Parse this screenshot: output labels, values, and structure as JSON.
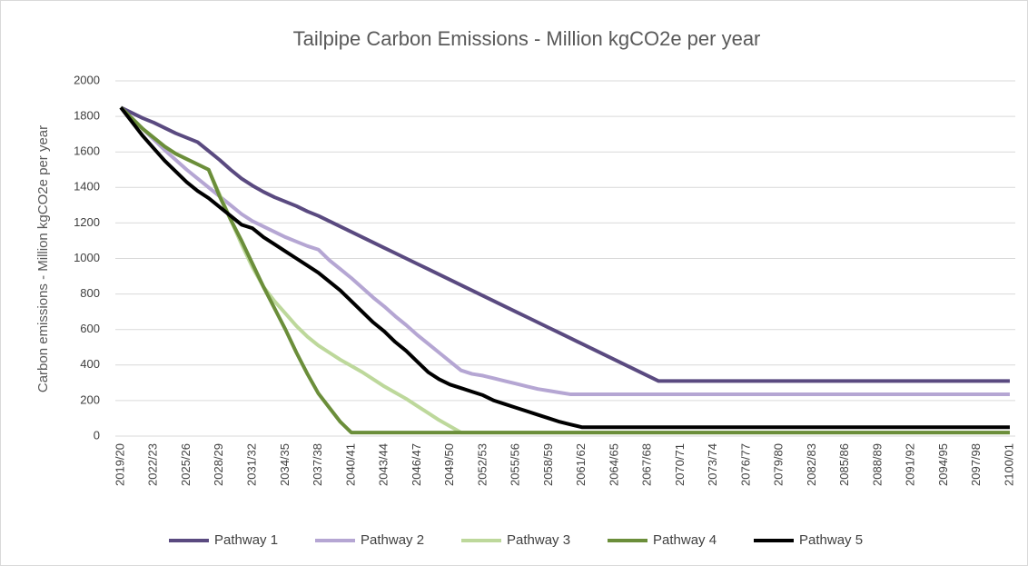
{
  "chart_data": {
    "type": "line",
    "title": "Tailpipe Carbon Emissions - Million kgCO2e per year",
    "y_label": "Carbon emissions - Million kgCO2e per year",
    "ylim": [
      0,
      2000
    ],
    "yticks": [
      0,
      200,
      400,
      600,
      800,
      1000,
      1200,
      1400,
      1600,
      1800,
      2000
    ],
    "grid": true,
    "legend": "bottom",
    "categories": [
      "2019/20",
      null,
      null,
      "2022/23",
      null,
      null,
      "2025/26",
      null,
      null,
      "2028/29",
      null,
      null,
      "2031/32",
      null,
      null,
      "2034/35",
      null,
      null,
      "2037/38",
      null,
      null,
      "2040/41",
      null,
      null,
      "2043/44",
      null,
      null,
      "2046/47",
      null,
      null,
      "2049/50",
      null,
      null,
      "2052/53",
      null,
      null,
      "2055/56",
      null,
      null,
      "2058/59",
      null,
      null,
      "2061/62",
      null,
      null,
      "2064/65",
      null,
      null,
      "2067/68",
      null,
      null,
      "2070/71",
      null,
      null,
      "2073/74",
      null,
      null,
      "2076/77",
      null,
      null,
      "2079/80",
      null,
      null,
      "2082/83",
      null,
      null,
      "2085/86",
      null,
      null,
      "2088/89",
      null,
      null,
      "2091/92",
      null,
      null,
      "2094/95",
      null,
      null,
      "2097/98",
      null,
      null,
      "2100/01"
    ],
    "series": [
      {
        "name": "Pathway 1",
        "color": "#5a4a80",
        "values": [
          1850,
          1820,
          1790,
          1765,
          1735,
          1705,
          1680,
          1655,
          1605,
          1555,
          1500,
          1450,
          1410,
          1375,
          1345,
          1320,
          1295,
          1265,
          1240,
          1210,
          1180,
          1150,
          1120,
          1090,
          1060,
          1030,
          1000,
          970,
          940,
          910,
          880,
          850,
          820,
          790,
          760,
          730,
          700,
          670,
          640,
          610,
          580,
          550,
          520,
          490,
          460,
          430,
          400,
          370,
          340,
          310,
          310,
          310,
          310,
          310,
          310,
          310,
          310,
          310,
          310,
          310,
          310,
          310,
          310,
          310,
          310,
          310,
          310,
          310,
          310,
          310,
          310,
          310,
          310,
          310,
          310,
          310,
          310,
          310,
          310,
          310,
          310,
          310
        ]
      },
      {
        "name": "Pathway 2",
        "color": "#b5a6d3",
        "values": [
          1850,
          1790,
          1730,
          1670,
          1610,
          1555,
          1500,
          1450,
          1400,
          1350,
          1300,
          1250,
          1210,
          1180,
          1150,
          1120,
          1095,
          1070,
          1050,
          990,
          940,
          890,
          835,
          780,
          730,
          675,
          625,
          570,
          520,
          470,
          420,
          370,
          350,
          340,
          325,
          310,
          295,
          280,
          265,
          255,
          245,
          235,
          235,
          235,
          235,
          235,
          235,
          235,
          235,
          235,
          235,
          235,
          235,
          235,
          235,
          235,
          235,
          235,
          235,
          235,
          235,
          235,
          235,
          235,
          235,
          235,
          235,
          235,
          235,
          235,
          235,
          235,
          235,
          235,
          235,
          235,
          235,
          235,
          235,
          235,
          235,
          235
        ]
      },
      {
        "name": "Pathway 3",
        "color": "#bdd89b",
        "values": [
          1850,
          1790,
          1730,
          1680,
          1630,
          1590,
          1560,
          1530,
          1500,
          1360,
          1220,
          1080,
          950,
          840,
          760,
          690,
          620,
          560,
          510,
          470,
          430,
          395,
          360,
          320,
          280,
          245,
          210,
          170,
          130,
          90,
          55,
          20,
          20,
          20,
          20,
          20,
          20,
          20,
          20,
          20,
          20,
          20,
          20,
          20,
          20,
          20,
          20,
          20,
          20,
          20,
          20,
          20,
          20,
          20,
          20,
          20,
          20,
          20,
          20,
          20,
          20,
          20,
          20,
          20,
          20,
          20,
          20,
          20,
          20,
          20,
          20,
          20,
          20,
          20,
          20,
          20,
          20,
          20,
          20,
          20,
          20,
          20
        ]
      },
      {
        "name": "Pathway 4",
        "color": "#6b8e3a",
        "values": [
          1850,
          1790,
          1730,
          1680,
          1630,
          1590,
          1560,
          1530,
          1500,
          1350,
          1220,
          1100,
          970,
          840,
          720,
          600,
          470,
          350,
          240,
          160,
          80,
          20,
          20,
          20,
          20,
          20,
          20,
          20,
          20,
          20,
          20,
          20,
          20,
          20,
          20,
          20,
          20,
          20,
          20,
          20,
          20,
          20,
          20,
          20,
          20,
          20,
          20,
          20,
          20,
          20,
          20,
          20,
          20,
          20,
          20,
          20,
          20,
          20,
          20,
          20,
          20,
          20,
          20,
          20,
          20,
          20,
          20,
          20,
          20,
          20,
          20,
          20,
          20,
          20,
          20,
          20,
          20,
          20,
          20,
          20,
          20,
          20
        ]
      },
      {
        "name": "Pathway 5",
        "color": "#000000",
        "values": [
          1850,
          1770,
          1690,
          1620,
          1550,
          1490,
          1430,
          1380,
          1340,
          1290,
          1240,
          1190,
          1170,
          1120,
          1080,
          1040,
          1000,
          960,
          920,
          870,
          820,
          760,
          700,
          640,
          590,
          530,
          480,
          420,
          360,
          320,
          290,
          270,
          250,
          230,
          200,
          180,
          160,
          140,
          120,
          100,
          80,
          65,
          50,
          50,
          50,
          50,
          50,
          50,
          50,
          50,
          50,
          50,
          50,
          50,
          50,
          50,
          50,
          50,
          50,
          50,
          50,
          50,
          50,
          50,
          50,
          50,
          50,
          50,
          50,
          50,
          50,
          50,
          50,
          50,
          50,
          50,
          50,
          50,
          50,
          50,
          50,
          50
        ]
      }
    ]
  }
}
